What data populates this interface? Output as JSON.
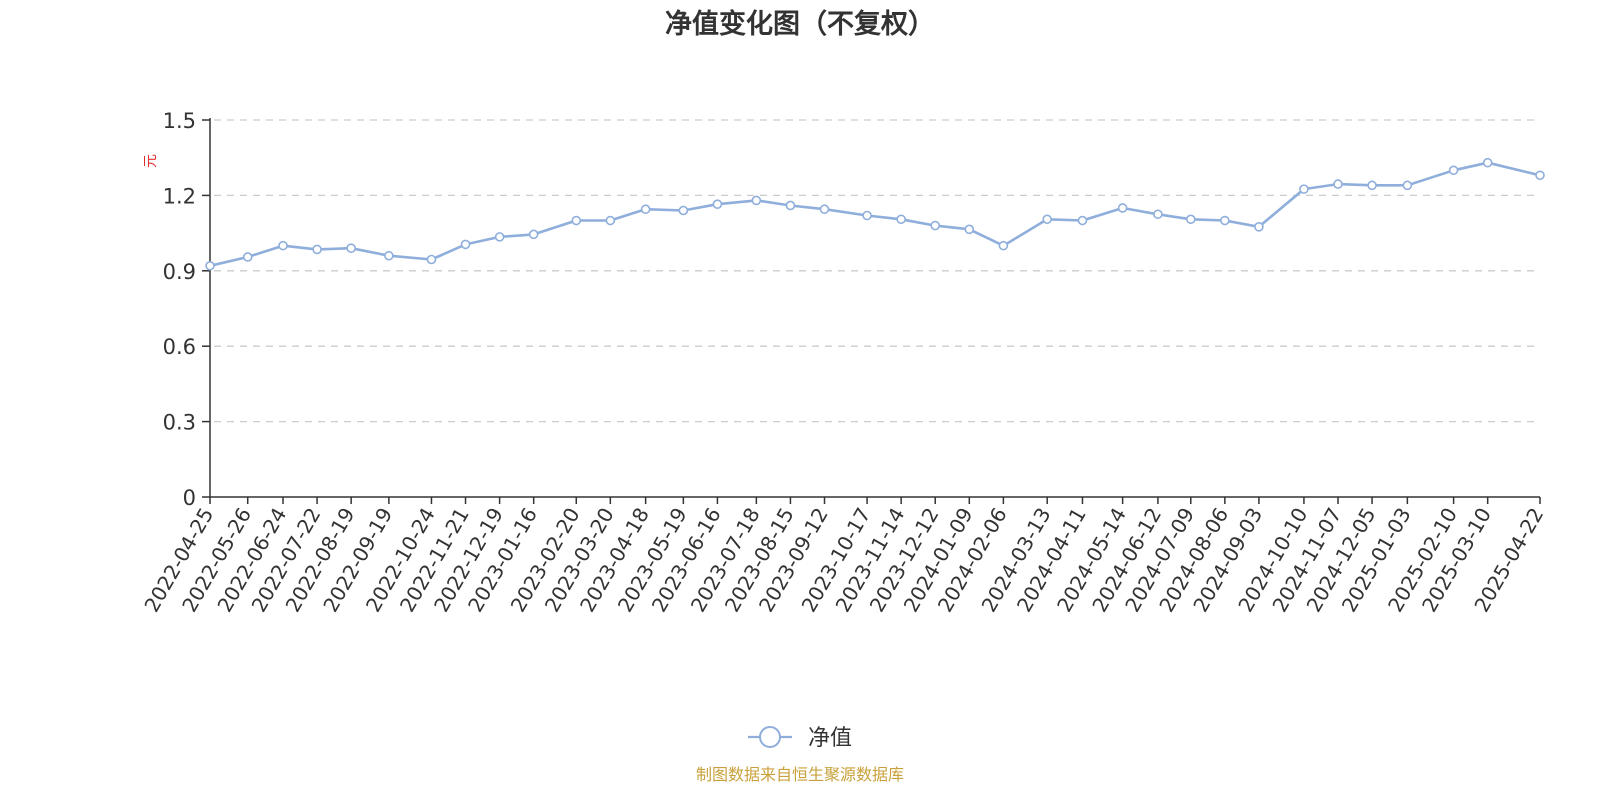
{
  "colors": {
    "series": "#8faedb",
    "axis": "#333333",
    "grid": "#cccccc",
    "unit": "#e03030",
    "source": "#c9a13b",
    "marker_fill": "#ffffff"
  },
  "chart_data": {
    "type": "line",
    "title": "净值变化图（不复权）",
    "ylabel": "元",
    "ylim": [
      0,
      1.5
    ],
    "yticks": [
      "0",
      "0.3",
      "0.6",
      "0.9",
      "1.2",
      "1.5"
    ],
    "grid": true,
    "legend": {
      "position": "bottom-center",
      "entries": [
        "净值"
      ]
    },
    "x_tick_labels": [
      "2022-04-25",
      "2022-05-26",
      "2022-06-24",
      "2022-07-22",
      "2022-08-19",
      "2022-09-19",
      "2022-10-24",
      "2022-11-21",
      "2022-12-19",
      "2023-01-16",
      "2023-02-20",
      "2023-03-20",
      "2023-04-18",
      "2023-05-19",
      "2023-06-16",
      "2023-07-18",
      "2023-08-15",
      "2023-09-12",
      "2023-10-17",
      "2023-11-14",
      "2023-12-12",
      "2024-01-09",
      "2024-02-06",
      "2024-03-13",
      "2024-04-11",
      "2024-05-14",
      "2024-06-12",
      "2024-07-09",
      "2024-08-06",
      "2024-09-03",
      "2024-10-10",
      "2024-11-07",
      "2024-12-05",
      "2025-01-03",
      "2025-02-10",
      "2025-03-10",
      "2025-04-22"
    ],
    "series": [
      {
        "name": "净值",
        "x": [
          "2022-04-25",
          "2022-05-26",
          "2022-06-24",
          "2022-07-22",
          "2022-08-19",
          "2022-09-19",
          "2022-10-24",
          "2022-11-21",
          "2022-12-19",
          "2023-01-16",
          "2023-02-20",
          "2023-03-20",
          "2023-04-18",
          "2023-05-19",
          "2023-06-16",
          "2023-07-18",
          "2023-08-15",
          "2023-09-12",
          "2023-10-17",
          "2023-11-14",
          "2023-12-12",
          "2024-01-09",
          "2024-02-06",
          "2024-03-13",
          "2024-04-11",
          "2024-05-14",
          "2024-06-12",
          "2024-07-09",
          "2024-08-06",
          "2024-09-03",
          "2024-10-10",
          "2024-11-07",
          "2024-12-05",
          "2025-01-03",
          "2025-02-10",
          "2025-03-10",
          "2025-04-22"
        ],
        "values": [
          0.92,
          0.955,
          1.0,
          0.985,
          0.99,
          0.96,
          0.945,
          1.005,
          1.035,
          1.045,
          1.1,
          1.1,
          1.145,
          1.14,
          1.165,
          1.18,
          1.16,
          1.145,
          1.12,
          1.105,
          1.08,
          1.065,
          1.0,
          1.105,
          1.1,
          1.15,
          1.125,
          1.105,
          1.1,
          1.075,
          1.225,
          1.245,
          1.24,
          1.24,
          1.3,
          1.33,
          1.28
        ]
      }
    ],
    "source": "制图数据来自恒生聚源数据库"
  }
}
